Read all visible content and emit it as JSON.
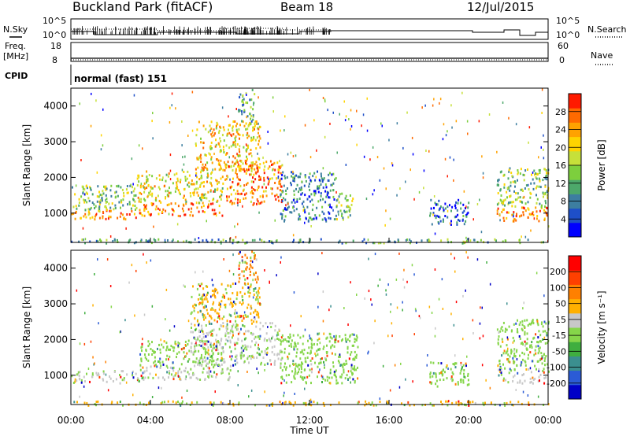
{
  "header": {
    "site": "Buckland Park (fitACF)",
    "beam": "Beam 18",
    "date": "12/Jul/2015"
  },
  "side_labels": {
    "nsky": "N.Sky",
    "nsearch": "N.Search",
    "freq": "Freq.",
    "freq_unit": "[MHz]",
    "nave": "Nave",
    "cpid": "CPID",
    "cpid_value": "normal (fast) 151"
  },
  "noise_axis": {
    "left_ticks": [
      "10^5",
      "10^0"
    ],
    "right_ticks": [
      "10^5",
      "10^0"
    ]
  },
  "freq_axis": {
    "left_ticks": [
      "18",
      "8"
    ],
    "right_ticks": [
      "60",
      "0"
    ]
  },
  "x_axis": {
    "label": "Time UT",
    "ticks": [
      "00:00",
      "04:00",
      "08:00",
      "12:00",
      "16:00",
      "20:00",
      "00:00"
    ]
  },
  "chart_data": [
    {
      "type": "heatmap",
      "title": "",
      "xlabel": "Time UT",
      "ylabel": "Slant Range [km]",
      "xlim": [
        0,
        24
      ],
      "ylim": [
        180,
        4500
      ],
      "y_ticks": [
        1000,
        2000,
        3000,
        4000
      ],
      "colorbar": {
        "label": "Power [dB]",
        "ticks": [
          "4",
          "8",
          "12",
          "16",
          "20",
          "24",
          "28"
        ],
        "colors": [
          "#0000ff",
          "#1e4fc8",
          "#3d7ea0",
          "#4da86a",
          "#7dcf3d",
          "#c6e03a",
          "#ffd400",
          "#ffa200",
          "#ff6a00",
          "#ff1a00"
        ]
      },
      "regions": [
        {
          "t0": 0.0,
          "t1": 3.3,
          "r0": 850,
          "r1": 1100,
          "level": 0.8
        },
        {
          "t0": 0.0,
          "t1": 3.3,
          "r0": 1100,
          "r1": 1800,
          "level": 0.45
        },
        {
          "t0": 3.3,
          "t1": 7.6,
          "r0": 950,
          "r1": 1300,
          "level": 0.85
        },
        {
          "t0": 3.3,
          "t1": 7.6,
          "r0": 1300,
          "r1": 2200,
          "level": 0.6
        },
        {
          "t0": 6.2,
          "t1": 9.5,
          "r0": 2200,
          "r1": 3600,
          "level": 0.65
        },
        {
          "t0": 7.6,
          "t1": 10.6,
          "r0": 1250,
          "r1": 2500,
          "level": 0.8
        },
        {
          "t0": 8.4,
          "t1": 9.3,
          "r0": 3600,
          "r1": 4500,
          "level": 0.35
        },
        {
          "t0": 10.5,
          "t1": 13.3,
          "r0": 800,
          "r1": 2200,
          "level": 0.25
        },
        {
          "t0": 13.3,
          "t1": 14.2,
          "r0": 850,
          "r1": 1600,
          "level": 0.45
        },
        {
          "t0": 18.0,
          "t1": 20.0,
          "r0": 700,
          "r1": 1400,
          "level": 0.2
        },
        {
          "t0": 21.4,
          "t1": 24.0,
          "r0": 800,
          "r1": 1200,
          "level": 0.85
        },
        {
          "t0": 21.4,
          "t1": 24.0,
          "r0": 1200,
          "r1": 2300,
          "level": 0.45
        },
        {
          "t0": 0.0,
          "t1": 24.0,
          "r0": 180,
          "r1": 300,
          "level": 0.35
        }
      ]
    },
    {
      "type": "heatmap",
      "title": "",
      "xlabel": "Time UT",
      "ylabel": "Slant Range [km]",
      "xlim": [
        0,
        24
      ],
      "ylim": [
        180,
        4500
      ],
      "y_ticks": [
        1000,
        2000,
        3000,
        4000
      ],
      "colorbar": {
        "label": "Velocity [m s⁻¹]",
        "ticks": [
          "200",
          "100",
          "50",
          "15",
          "-15",
          "-50",
          "-100",
          "-200"
        ],
        "colors": [
          "#0000c8",
          "#2b5bd6",
          "#3b8f8f",
          "#3fae3f",
          "#86d64a",
          "#c8c8c8",
          "#ffb000",
          "#ff8000",
          "#ff4000",
          "#ff0000"
        ]
      },
      "regions": [
        {
          "t0": 0.0,
          "t1": 3.4,
          "r0": 800,
          "r1": 1150,
          "level": 0.5
        },
        {
          "t0": 3.4,
          "t1": 8.0,
          "r0": 900,
          "r1": 1300,
          "level": 0.5
        },
        {
          "t0": 3.4,
          "t1": 7.6,
          "r0": 1300,
          "r1": 2000,
          "level": 0.45
        },
        {
          "t0": 6.0,
          "t1": 10.6,
          "r0": 1300,
          "r1": 2500,
          "level": 0.5
        },
        {
          "t0": 6.0,
          "t1": 9.5,
          "r0": 2500,
          "r1": 3600,
          "level": 0.65
        },
        {
          "t0": 8.4,
          "t1": 9.4,
          "r0": 3600,
          "r1": 4500,
          "level": 0.7
        },
        {
          "t0": 10.5,
          "t1": 14.4,
          "r0": 800,
          "r1": 2200,
          "level": 0.4
        },
        {
          "t0": 18.0,
          "t1": 20.0,
          "r0": 700,
          "r1": 1400,
          "level": 0.4
        },
        {
          "t0": 21.4,
          "t1": 24.0,
          "r0": 800,
          "r1": 1200,
          "level": 0.5
        },
        {
          "t0": 21.4,
          "t1": 24.0,
          "r0": 1200,
          "r1": 2600,
          "level": 0.4
        },
        {
          "t0": 0.0,
          "t1": 24.0,
          "r0": 180,
          "r1": 300,
          "level": 0.6
        }
      ]
    }
  ]
}
